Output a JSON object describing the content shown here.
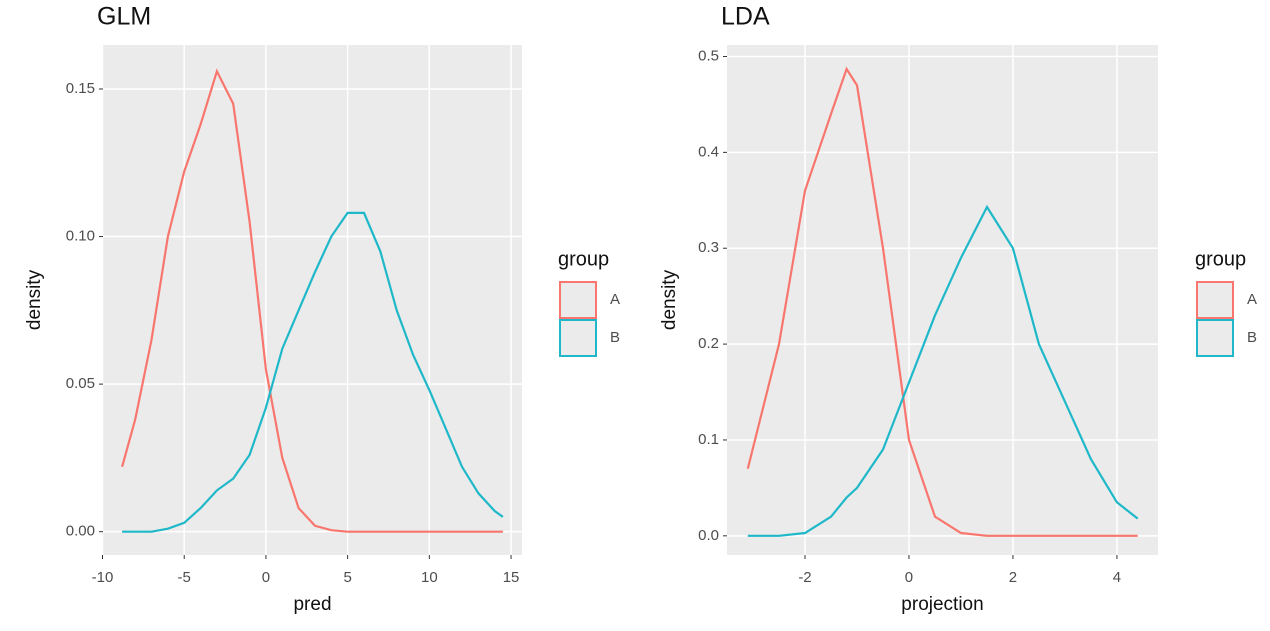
{
  "chart_data": [
    {
      "type": "line",
      "title": "GLM",
      "x_label": "pred",
      "y_label": "density",
      "legend_title": "group",
      "x": [
        -8.8,
        -8,
        -7,
        -6,
        -5,
        -4,
        -3,
        -2,
        -1,
        0,
        1,
        2,
        3,
        4,
        5,
        6,
        7,
        8,
        9,
        10,
        11,
        12,
        13,
        14,
        14.5
      ],
      "series": [
        {
          "name": "A",
          "color": "#f8766d",
          "values": [
            0.022,
            0.038,
            0.065,
            0.1,
            0.122,
            0.138,
            0.156,
            0.145,
            0.105,
            0.055,
            0.025,
            0.008,
            0.002,
            0.0005,
            0,
            0,
            0,
            0,
            0,
            0,
            0,
            0,
            0,
            0,
            0
          ]
        },
        {
          "name": "B",
          "color": "#1fb8c9",
          "values": [
            0,
            0,
            0,
            0.001,
            0.003,
            0.008,
            0.014,
            0.018,
            0.026,
            0.042,
            0.062,
            0.075,
            0.088,
            0.1,
            0.108,
            0.108,
            0.095,
            0.075,
            0.06,
            0.048,
            0.035,
            0.022,
            0.013,
            0.007,
            0.005
          ]
        }
      ],
      "xlim": [
        -9.97,
        15.67
      ],
      "xticks": [
        -10,
        -5,
        0,
        5,
        10,
        15
      ],
      "ylim": [
        -0.0079,
        0.1649
      ],
      "yticks": [
        {
          "value": 0,
          "label": "0.00"
        },
        0.05,
        {
          "value": 0.1,
          "label": "0.10"
        },
        0.15
      ],
      "grid": true
    },
    {
      "type": "line",
      "title": "LDA",
      "x_label": "projection",
      "y_label": "density",
      "legend_title": "group",
      "x": [
        -3.1,
        -2.5,
        -2,
        -1.5,
        -1.2,
        -1,
        -0.5,
        0,
        0.5,
        1,
        1.5,
        2,
        2.5,
        3,
        3.5,
        4,
        4.4
      ],
      "series": [
        {
          "name": "A",
          "color": "#f8766d",
          "values": [
            0.07,
            0.2,
            0.36,
            0.44,
            0.487,
            0.47,
            0.3,
            0.1,
            0.02,
            0.003,
            0,
            0,
            0,
            0,
            0,
            0,
            0
          ]
        },
        {
          "name": "B",
          "color": "#1fb8c9",
          "values": [
            0,
            0,
            0.003,
            0.02,
            0.04,
            0.05,
            0.09,
            0.16,
            0.23,
            0.29,
            0.343,
            0.3,
            0.2,
            0.14,
            0.08,
            0.035,
            0.018
          ]
        }
      ],
      "xlim": [
        -3.5,
        4.79
      ],
      "xticks": [
        -2,
        0,
        2,
        4
      ],
      "ylim": [
        -0.02,
        0.512
      ],
      "yticks": [
        {
          "value": 0,
          "label": "0.0"
        },
        0.1,
        0.2,
        0.3,
        0.4,
        0.5
      ],
      "grid": true
    }
  ]
}
